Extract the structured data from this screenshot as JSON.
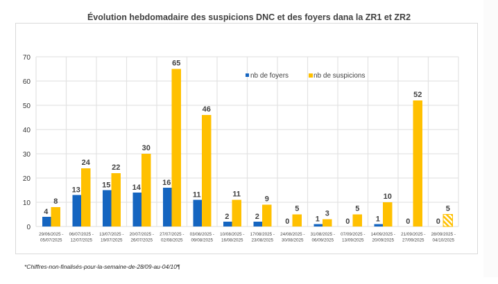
{
  "chart_data": {
    "type": "bar",
    "title": "Évolution hebdomadaire des suspicions DNC et des foyers dana la ZR1 et ZR2",
    "xlabel": "",
    "ylabel": "",
    "ylim": [
      0,
      70
    ],
    "yticks": [
      0,
      10,
      20,
      30,
      40,
      50,
      60,
      70
    ],
    "grid": true,
    "legend_position": "top-center",
    "categories": [
      [
        "29/06/2025 -",
        "05/07/2025"
      ],
      [
        "06/07/2025 -",
        "12/07/2025"
      ],
      [
        "13/07/2025 -",
        "19/07/2025"
      ],
      [
        "20/07/2025 -",
        "26/07/2025"
      ],
      [
        "27/07/2025 -",
        "02/08/2025"
      ],
      [
        "03/08/2025 -",
        "09/08/2025"
      ],
      [
        "10/08/2025 -",
        "16/08/2025"
      ],
      [
        "17/08/2025 -",
        "23/08/2025"
      ],
      [
        "24/08/2025 -",
        "30/08/2025"
      ],
      [
        "31/08/2025 -",
        "06/09/2025"
      ],
      [
        "07/09/2025 -",
        "13/09/2025"
      ],
      [
        "14/09/2025 -",
        "20/09/2025"
      ],
      [
        "21/09/2025 -",
        "27/09/2025"
      ],
      [
        "28/09/2025 -",
        "04/10/2025"
      ]
    ],
    "series": [
      {
        "name": "nb de foyers",
        "color": "#1565C0",
        "values": [
          4,
          13,
          15,
          14,
          16,
          11,
          2,
          2,
          0,
          1,
          0,
          1,
          0,
          0
        ]
      },
      {
        "name": "nb de suspicions",
        "color": "#FFC000",
        "values": [
          8,
          24,
          22,
          30,
          65,
          46,
          11,
          9,
          5,
          3,
          5,
          10,
          52,
          5
        ],
        "hatched_last": true
      }
    ]
  },
  "footnote": "*Chiffres-non-finalisés-pour-la-semaine-de-28/09-au-04/10¶"
}
